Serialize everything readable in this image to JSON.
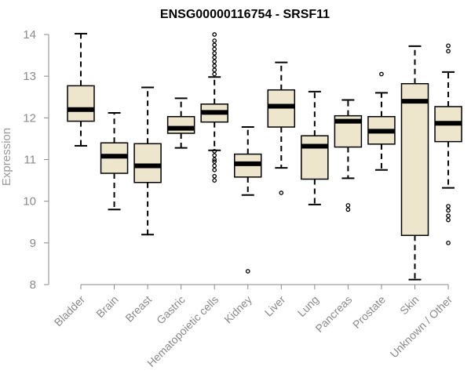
{
  "chart_data": {
    "type": "boxplot",
    "title": "ENSG00000116754 - SRSF11",
    "xlabel": "",
    "ylabel": "Expression",
    "ylim": [
      8,
      14
    ],
    "yticks": [
      8,
      9,
      10,
      11,
      12,
      13,
      14
    ],
    "box_fill": "#ede6cc",
    "categories": [
      "Bladder",
      "Brain",
      "Breast",
      "Gastric",
      "Hematopoietic cells",
      "Kidney",
      "Liver",
      "Lung",
      "Pancreas",
      "Prostate",
      "Skin",
      "Unknown / Other"
    ],
    "boxes": [
      {
        "name": "Bladder",
        "whisker_low": 11.33,
        "q1": 11.92,
        "median": 12.2,
        "q3": 12.77,
        "whisker_high": 14.02,
        "outliers": []
      },
      {
        "name": "Brain",
        "whisker_low": 9.8,
        "q1": 10.67,
        "median": 11.08,
        "q3": 11.4,
        "whisker_high": 12.12,
        "outliers": []
      },
      {
        "name": "Breast",
        "whisker_low": 9.2,
        "q1": 10.45,
        "median": 10.85,
        "q3": 11.38,
        "whisker_high": 12.73,
        "outliers": []
      },
      {
        "name": "Gastric",
        "whisker_low": 11.28,
        "q1": 11.63,
        "median": 11.75,
        "q3": 12.03,
        "whisker_high": 12.47,
        "outliers": []
      },
      {
        "name": "Hematopoietic cells",
        "whisker_low": 11.22,
        "q1": 11.9,
        "median": 12.13,
        "q3": 12.33,
        "whisker_high": 12.98,
        "outliers": [
          10.5,
          10.6,
          10.75,
          10.85,
          10.95,
          11.0,
          11.1,
          11.2,
          13.05,
          13.15,
          13.25,
          13.35,
          13.45,
          13.55,
          13.65,
          13.75,
          13.85,
          14.0
        ]
      },
      {
        "name": "Kidney",
        "whisker_low": 10.15,
        "q1": 10.58,
        "median": 10.9,
        "q3": 11.13,
        "whisker_high": 11.78,
        "outliers": [
          8.32
        ]
      },
      {
        "name": "Liver",
        "whisker_low": 10.8,
        "q1": 11.78,
        "median": 12.28,
        "q3": 12.67,
        "whisker_high": 13.33,
        "outliers": [
          10.2
        ]
      },
      {
        "name": "Lung",
        "whisker_low": 9.92,
        "q1": 10.53,
        "median": 11.32,
        "q3": 11.57,
        "whisker_high": 12.63,
        "outliers": []
      },
      {
        "name": "Pancreas",
        "whisker_low": 10.55,
        "q1": 11.3,
        "median": 11.92,
        "q3": 12.05,
        "whisker_high": 12.43,
        "outliers": [
          9.8,
          9.9
        ]
      },
      {
        "name": "Prostate",
        "whisker_low": 10.75,
        "q1": 11.37,
        "median": 11.68,
        "q3": 12.03,
        "whisker_high": 12.6,
        "outliers": [
          13.05
        ]
      },
      {
        "name": "Skin",
        "whisker_low": 8.12,
        "q1": 9.18,
        "median": 12.4,
        "q3": 12.82,
        "whisker_high": 13.72,
        "outliers": []
      },
      {
        "name": "Unknown / Other",
        "whisker_low": 10.32,
        "q1": 11.43,
        "median": 11.87,
        "q3": 12.27,
        "whisker_high": 13.1,
        "outliers": [
          9.0,
          9.55,
          9.65,
          9.78,
          9.88,
          13.6,
          13.73
        ]
      }
    ]
  }
}
